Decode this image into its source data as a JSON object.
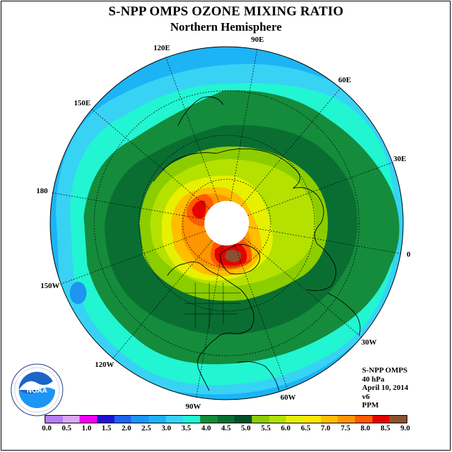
{
  "title": "S-NPP OMPS OZONE MIXING RATIO",
  "subtitle": "Northern Hemisphere",
  "longitude_labels": {
    "lon_90e": "90E",
    "lon_60e": "60E",
    "lon_30e": "30E",
    "lon_0": "0",
    "lon_30w": "30W",
    "lon_60w": "60W",
    "lon_90w": "90W",
    "lon_120w": "120W",
    "lon_150w": "150W",
    "lon_180": "180",
    "lon_150e": "150E",
    "lon_120e": "120E"
  },
  "info": {
    "instrument": "S-NPP OMPS",
    "level": "40 hPa",
    "date": "April 10, 2014",
    "version": "v6",
    "units": "PPM"
  },
  "colorbar": {
    "colors": [
      "#b57ef2",
      "#dca8f4",
      "#f200f2",
      "#1e14d2",
      "#1e64f0",
      "#1c96f5",
      "#1cb4f5",
      "#38d2f5",
      "#22f5d2",
      "#148c3c",
      "#0a6e32",
      "#005028",
      "#8ccd00",
      "#b4e100",
      "#e6f000",
      "#ffe600",
      "#ffbe00",
      "#ff9600",
      "#ff5a00",
      "#e60000",
      "#8c5032"
    ],
    "ticks": [
      "0.0",
      "0.5",
      "1.0",
      "1.5",
      "2.0",
      "2.5",
      "3.0",
      "3.5",
      "4.0",
      "4.5",
      "5.0",
      "5.5",
      "6.0",
      "6.5",
      "7.0",
      "7.5",
      "8.0",
      "8.5",
      "9.0"
    ]
  },
  "logo": {
    "text": "NOAA",
    "ring_text": "NATIONAL OCEANIC AND ATMOSPHERIC ADMINISTRATION · U.S. DEPARTMENT OF COMMERCE"
  }
}
